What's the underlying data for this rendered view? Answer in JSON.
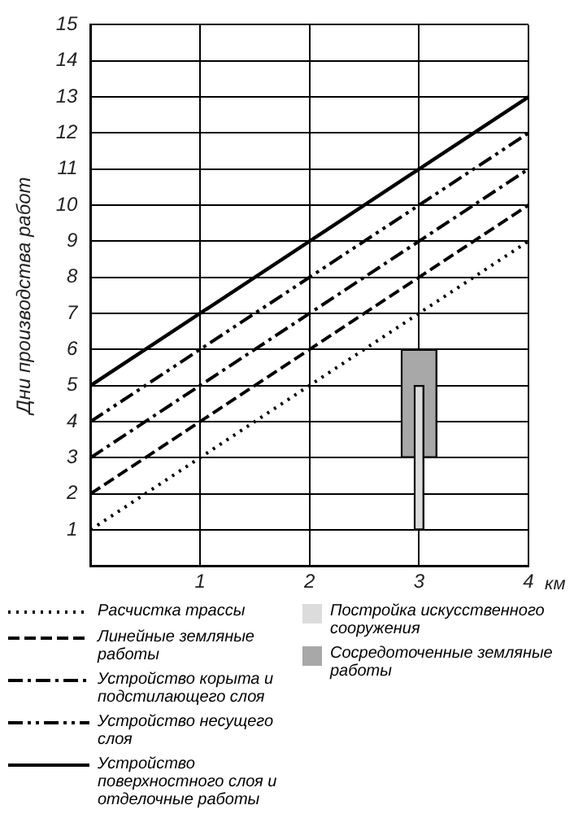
{
  "chart_data": {
    "type": "line",
    "ylabel": "Дни производства работ",
    "xlabel": "км",
    "x": [
      0,
      4
    ],
    "xlim": [
      0,
      4
    ],
    "xticks": [
      {
        "value": 0,
        "label": null
      },
      1,
      2,
      3,
      4
    ],
    "ylim": [
      0,
      15
    ],
    "yticks": [
      {
        "value": 0,
        "label": null
      },
      1,
      2,
      3,
      4,
      5,
      6,
      7,
      8,
      9,
      10,
      11,
      12,
      13,
      14,
      15
    ],
    "grid": true,
    "legend": "bottom",
    "marker": "none",
    "series": [
      {
        "name": "Расчистка трассы",
        "color": "#000000",
        "values": [
          1,
          9
        ],
        "line_style": "dotted"
      },
      {
        "name": "Линейные земляные работы",
        "color": "#000000",
        "values": [
          2,
          10
        ],
        "line_style": "dashed"
      },
      {
        "name": "Устройство корыта и подстилающего слоя",
        "color": "#000000",
        "values": [
          3,
          11
        ],
        "line_style": "dashdot"
      },
      {
        "name": "Устройство несущего слоя",
        "color": "#000000",
        "values": [
          4,
          12
        ],
        "line_style": "dashdotdot"
      },
      {
        "name": "Устройство поверхностного слоя и отделочные работы",
        "color": "#000000",
        "values": [
          5,
          13
        ],
        "line_style": "solid"
      },
      {
        "name": "Сосредоточенные земляные работы",
        "type": "bar",
        "color": "#a8a8a8",
        "x": [
          3
        ],
        "base": [
          3
        ],
        "values": [
          3
        ]
      },
      {
        "name": "Постройка искусственного сооружения",
        "type": "bar",
        "color": "#dcdcdc",
        "x": [
          3
        ],
        "base": [
          1
        ],
        "values": [
          4
        ]
      }
    ]
  }
}
